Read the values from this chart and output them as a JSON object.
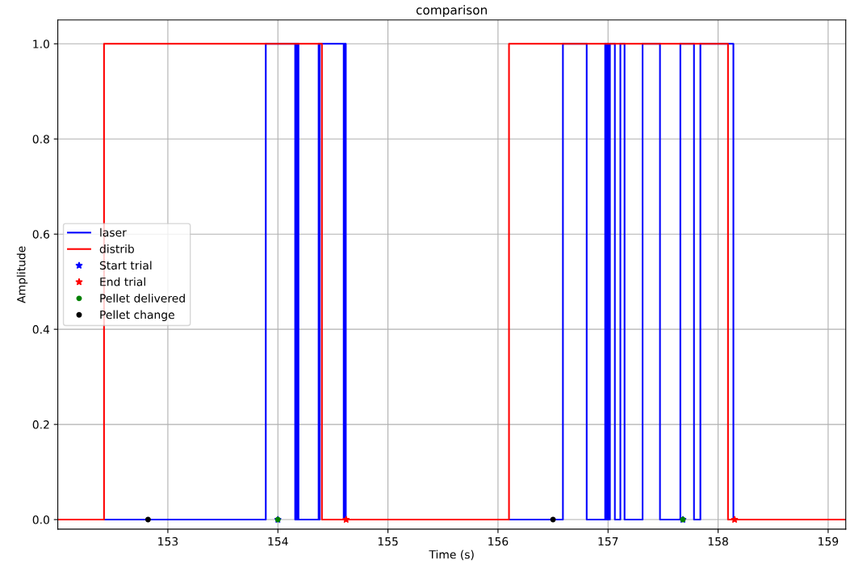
{
  "chart_data": {
    "type": "step",
    "title": "comparison",
    "xlabel": "Time (s)",
    "ylabel": "Amplitude",
    "xlim": [
      152.0,
      159.16
    ],
    "xticks": [
      153,
      154,
      155,
      156,
      157,
      158,
      159
    ],
    "ylim": [
      -0.02,
      1.05
    ],
    "yticks": [
      {
        "value": 0,
        "label": "0.0"
      },
      {
        "value": 0.2,
        "label": "0.2"
      },
      {
        "value": 0.4,
        "label": "0.4"
      },
      {
        "value": 0.6,
        "label": "0.6"
      },
      {
        "value": 0.8,
        "label": "0.8"
      },
      {
        "value": 1,
        "label": "1.0"
      }
    ],
    "grid": true,
    "legend": "left",
    "series": [
      {
        "name": "laser",
        "color": "#0000ff",
        "marker": "none",
        "x": [
          152.0,
          153.89,
          154.157,
          154.165,
          154.172,
          154.18,
          154.187,
          154.195,
          154.37,
          154.375,
          154.38,
          154.598,
          154.604,
          154.609,
          154.613,
          154.617,
          156.59,
          156.806,
          156.974,
          156.985,
          156.995,
          157.005,
          157.017,
          157.062,
          157.112,
          157.15,
          157.314,
          157.472,
          157.657,
          157.781,
          157.839,
          158.139,
          159.16
        ],
        "values": [
          0,
          1,
          0,
          1,
          0,
          1,
          0,
          0,
          1,
          0,
          1,
          0,
          1,
          0,
          1,
          0,
          1,
          0,
          1,
          0,
          1,
          0,
          1,
          0,
          1,
          0,
          1,
          0,
          1,
          0,
          1,
          0,
          0
        ]
      },
      {
        "name": "distrib",
        "color": "#ff0000",
        "marker": "none",
        "x": [
          152.0,
          152.42,
          154.4,
          156.1,
          158.09,
          159.16
        ],
        "values": [
          0,
          1,
          0,
          1,
          0,
          0
        ]
      },
      {
        "name": "Start trial",
        "type": "scatter",
        "color": "#0000ff",
        "marker": "star",
        "x": [
          154.0,
          157.68
        ],
        "values": [
          0,
          0
        ]
      },
      {
        "name": "End trial",
        "type": "scatter",
        "color": "#ff0000",
        "marker": "star",
        "x": [
          154.62,
          158.15
        ],
        "values": [
          0,
          0
        ]
      },
      {
        "name": "Pellet delivered",
        "type": "scatter",
        "color": "#008000",
        "marker": "circle",
        "x": [
          154.0,
          157.68
        ],
        "values": [
          0,
          0
        ]
      },
      {
        "name": "Pellet change",
        "type": "scatter",
        "color": "#000000",
        "marker": "circle",
        "x": [
          152.82,
          156.5
        ],
        "values": [
          0,
          0
        ]
      }
    ]
  }
}
